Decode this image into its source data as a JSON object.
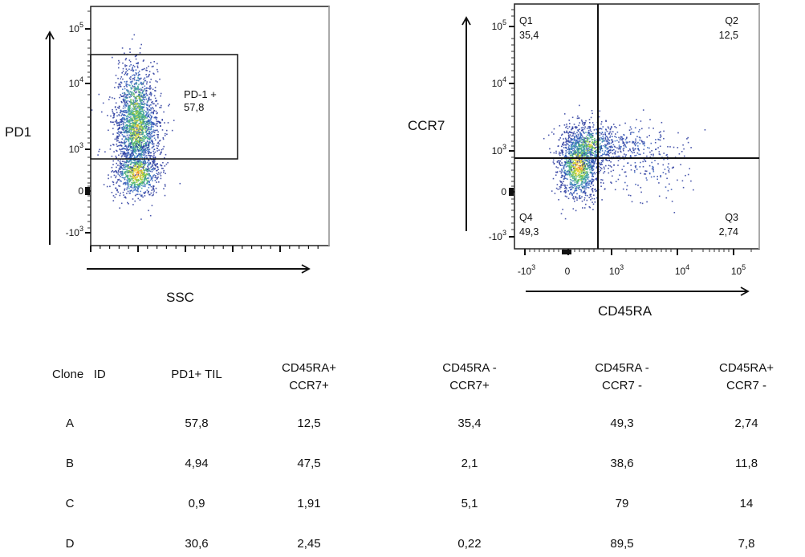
{
  "chart_data": [
    {
      "type": "scatter",
      "title": "",
      "xlabel": "SSC",
      "ylabel": "PD1",
      "y_ticks": [
        "10^5",
        "10^4",
        "10^3",
        "0",
        "-10^3"
      ],
      "x_ticks": [],
      "gate": {
        "label": "PD-1 +",
        "value": "57,8"
      },
      "description": "Density dot plot; population concentrated near low SSC, PD1 spanning ~-500 to ~10^4, gate from ~700 to ~3x10^4"
    },
    {
      "type": "scatter",
      "title": "",
      "xlabel": "CD45RA",
      "ylabel": "CCR7",
      "x_ticks": [
        "-10^3",
        "0",
        "10^3",
        "10^4",
        "10^5"
      ],
      "y_ticks": [
        "10^5",
        "10^4",
        "10^3",
        "0",
        "-10^3"
      ],
      "quadrants": [
        {
          "name": "Q1",
          "value": "35,4",
          "position": "top-left"
        },
        {
          "name": "Q2",
          "value": "12,5",
          "position": "top-right"
        },
        {
          "name": "Q3",
          "value": "2,74",
          "position": "bottom-right"
        },
        {
          "name": "Q4",
          "value": "49,3",
          "position": "bottom-left"
        }
      ]
    },
    {
      "type": "table",
      "columns": [
        "Clone   ID",
        "PD1+ TIL",
        "CD45RA+\nCCR7+",
        "CD45RA -\nCCR7+",
        "CD45RA -\nCCR7 -",
        "CD45RA+\nCCR7 -"
      ],
      "rows": [
        [
          "A",
          "57,8",
          "12,5",
          "35,4",
          "49,3",
          "2,74"
        ],
        [
          "B",
          "4,94",
          "47,5",
          "2,1",
          "38,6",
          "11,8"
        ],
        [
          "C",
          "0,9",
          "1,91",
          "5,1",
          "79",
          "14"
        ],
        [
          "D",
          "30,6",
          "2,45",
          "0,22",
          "89,5",
          "7,8"
        ]
      ]
    }
  ],
  "plot1": {
    "ylabel": "PD1",
    "xlabel": "SSC",
    "y_ticks": [
      {
        "base": "10",
        "exp": "5"
      },
      {
        "base": "10",
        "exp": "4"
      },
      {
        "base": "10",
        "exp": "3"
      },
      {
        "base": "0",
        "exp": ""
      },
      {
        "base": "-10",
        "exp": "3"
      }
    ],
    "gate_label": "PD-1 +",
    "gate_value": "57,8"
  },
  "plot2": {
    "ylabel": "CCR7",
    "xlabel": "CD45RA",
    "y_ticks": [
      {
        "base": "10",
        "exp": "5"
      },
      {
        "base": "10",
        "exp": "4"
      },
      {
        "base": "10",
        "exp": "3"
      },
      {
        "base": "0",
        "exp": ""
      },
      {
        "base": "-10",
        "exp": "3"
      }
    ],
    "x_ticks": [
      {
        "base": "-10",
        "exp": "3"
      },
      {
        "base": "0",
        "exp": ""
      },
      {
        "base": "10",
        "exp": "3"
      },
      {
        "base": "10",
        "exp": "4"
      },
      {
        "base": "10",
        "exp": "5"
      }
    ],
    "q1": {
      "name": "Q1",
      "value": "35,4"
    },
    "q2": {
      "name": "Q2",
      "value": "12,5"
    },
    "q3": {
      "name": "Q3",
      "value": "2,74"
    },
    "q4": {
      "name": "Q4",
      "value": "49,3"
    }
  },
  "table": {
    "headers": [
      {
        "l1": "Clone   ID",
        "l2": ""
      },
      {
        "l1": "PD1+ TIL",
        "l2": ""
      },
      {
        "l1": "CD45RA+",
        "l2": "CCR7+"
      },
      {
        "l1": "CD45RA -",
        "l2": "CCR7+"
      },
      {
        "l1": "CD45RA -",
        "l2": "CCR7 -"
      },
      {
        "l1": "CD45RA+",
        "l2": "CCR7 -"
      }
    ],
    "rows": [
      [
        "A",
        "57,8",
        "12,5",
        "35,4",
        "49,3",
        "2,74"
      ],
      [
        "B",
        "4,94",
        "47,5",
        "2,1",
        "38,6",
        "11,8"
      ],
      [
        "C",
        "0,9",
        "1,91",
        "5,1",
        "79",
        "14"
      ],
      [
        "D",
        "30,6",
        "2,45",
        "0,22",
        "89,5",
        "7,8"
      ]
    ]
  }
}
